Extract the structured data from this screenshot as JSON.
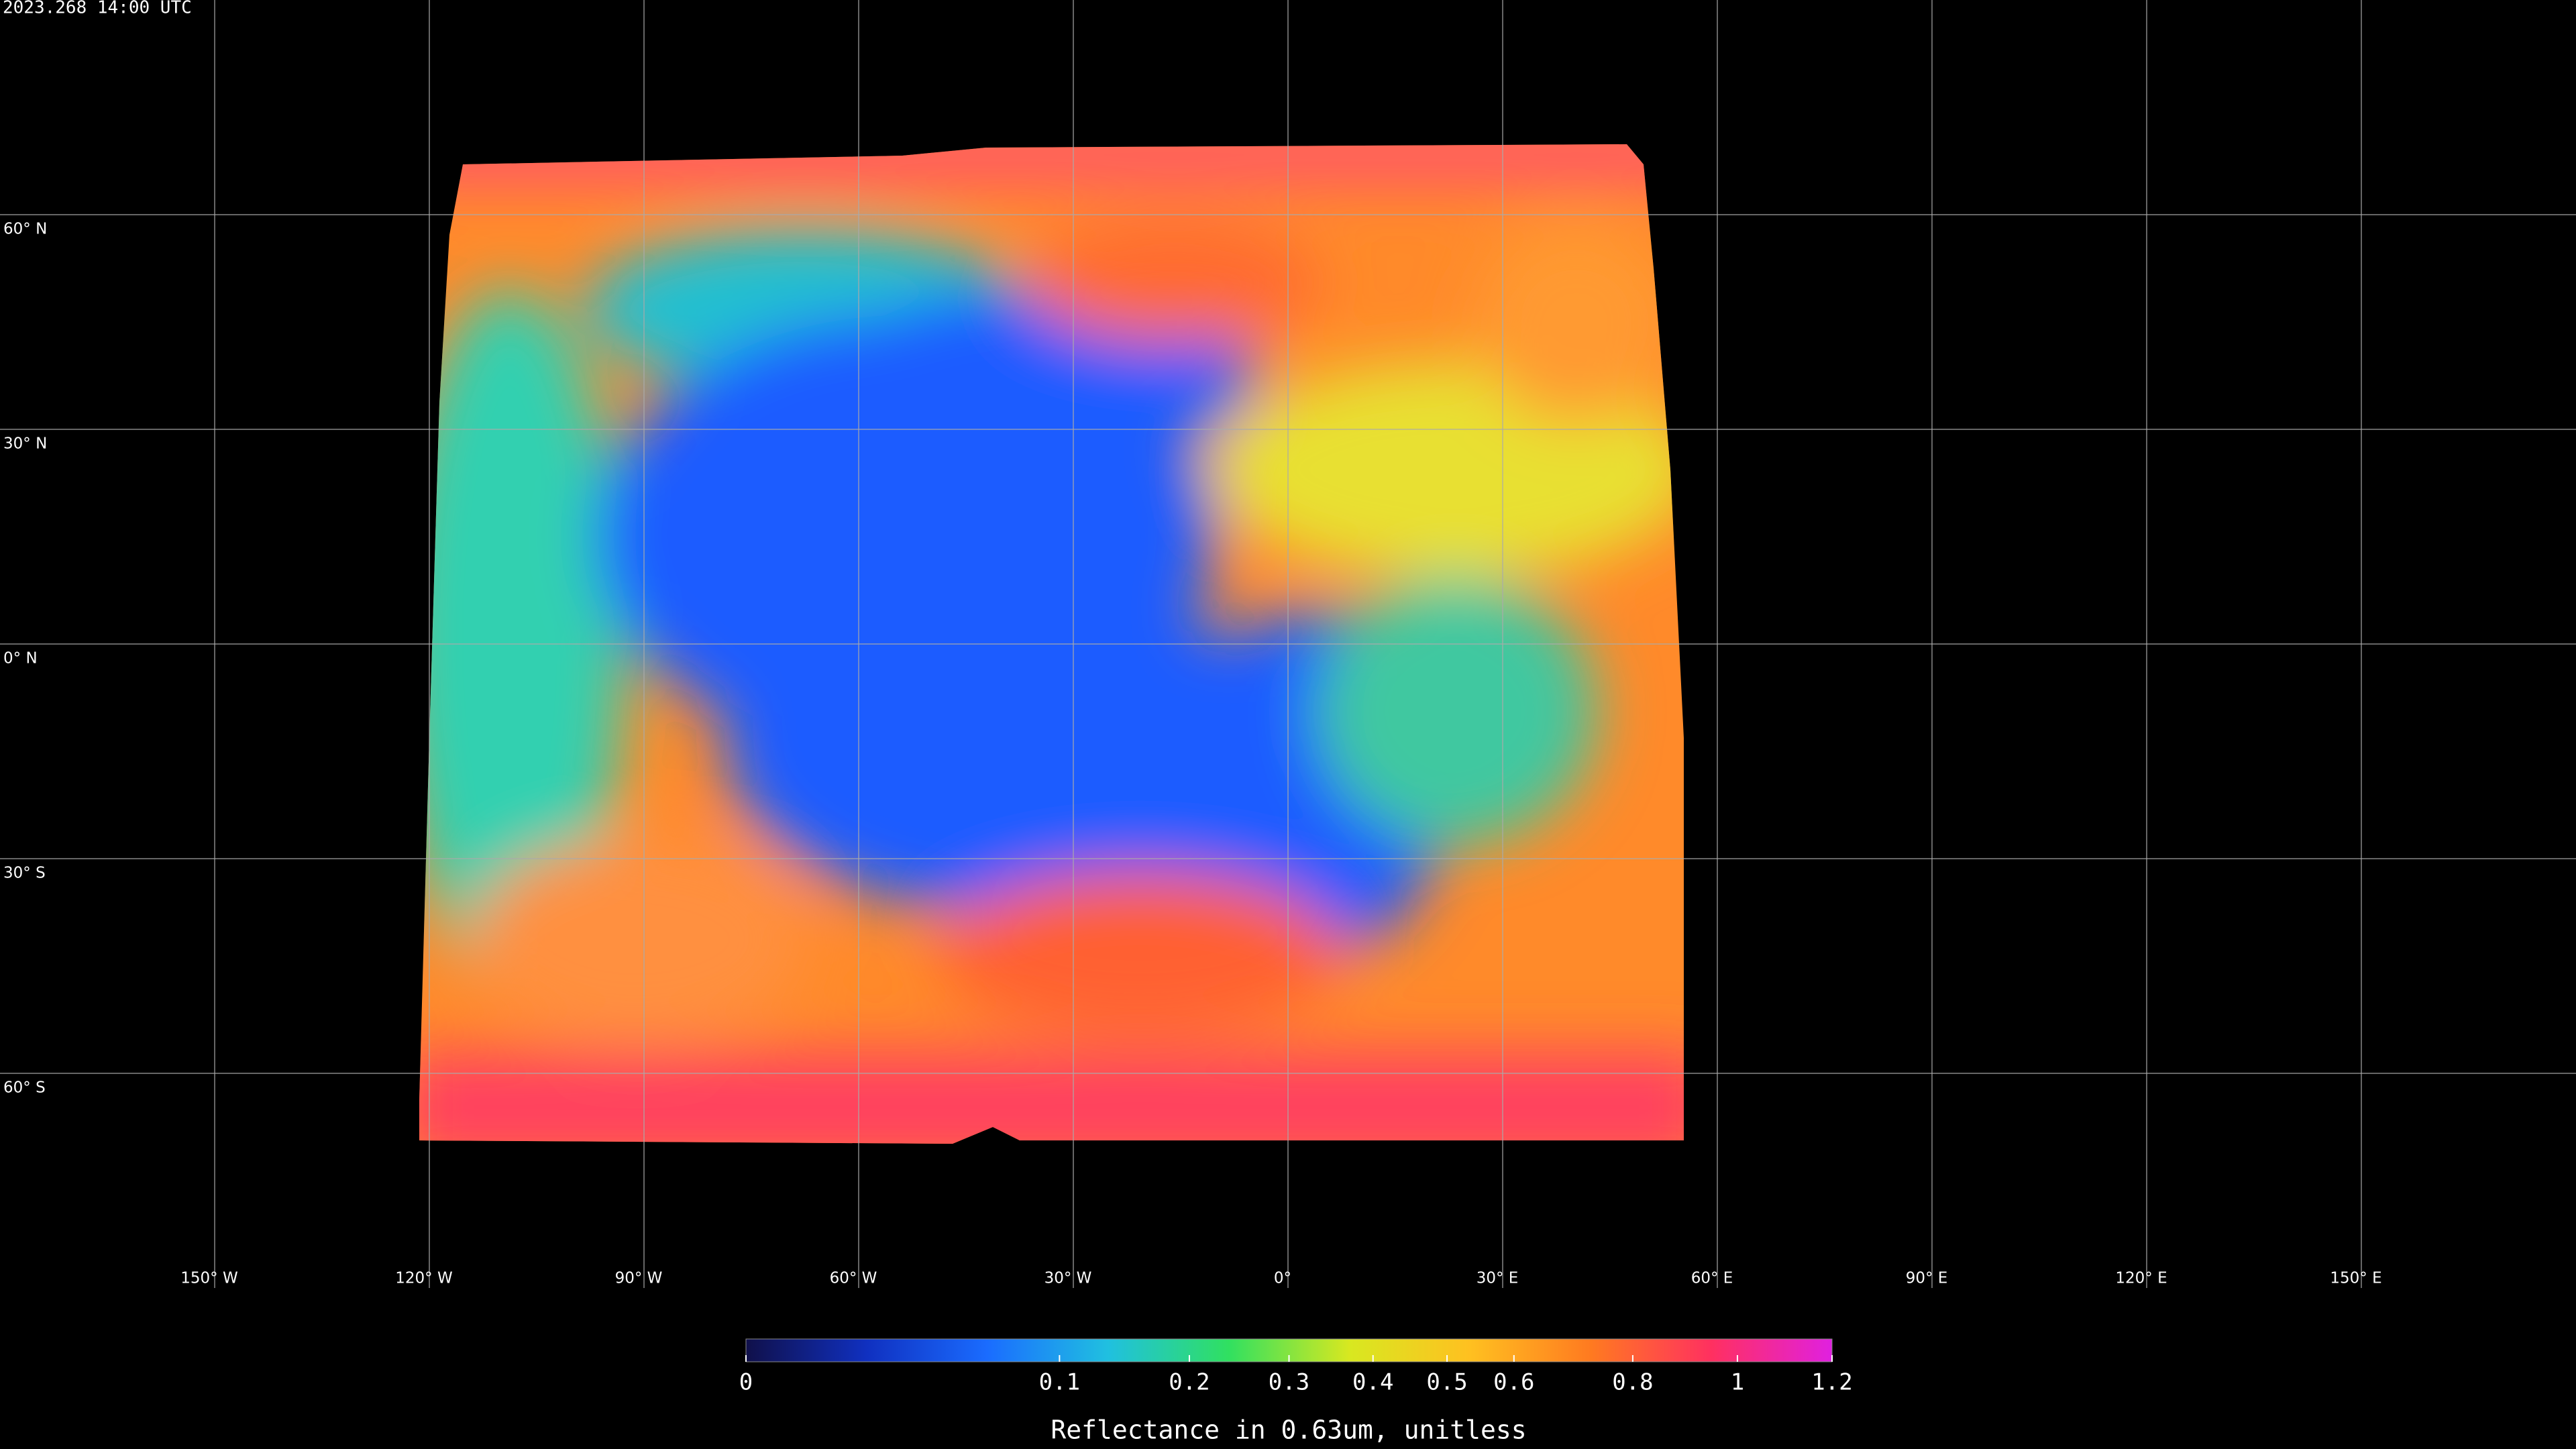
{
  "timestamp": "2023.268 14:00 UTC",
  "map": {
    "lon_range": [
      -180,
      180
    ],
    "lat_range": [
      -90,
      90
    ],
    "lats": [
      {
        "value": 60,
        "label": "60° N"
      },
      {
        "value": 30,
        "label": "30° N"
      },
      {
        "value": 0,
        "label": "0° N"
      },
      {
        "value": -30,
        "label": "30° S"
      },
      {
        "value": -60,
        "label": "60° S"
      }
    ],
    "lons": [
      {
        "value": -150,
        "label": "150° W"
      },
      {
        "value": -120,
        "label": "120° W"
      },
      {
        "value": -90,
        "label": "90° W"
      },
      {
        "value": -60,
        "label": "60° W"
      },
      {
        "value": -30,
        "label": "30° W"
      },
      {
        "value": 0,
        "label": "0°"
      },
      {
        "value": 30,
        "label": "30° E"
      },
      {
        "value": 60,
        "label": "60° E"
      },
      {
        "value": 90,
        "label": "90° E"
      },
      {
        "value": 120,
        "label": "120° E"
      },
      {
        "value": 150,
        "label": "150° E"
      }
    ]
  },
  "colorbar": {
    "label": "Reflectance in 0.63um, unitless",
    "range": [
      0,
      1.2
    ],
    "scale": "sqrt",
    "ticks": [
      0,
      0.1,
      0.2,
      0.3,
      0.4,
      0.5,
      0.6,
      0.8,
      1,
      1.2
    ],
    "colormap": [
      "#10104a",
      "#1030c0",
      "#1a6cff",
      "#20c0e0",
      "#30e060",
      "#d8e820",
      "#ffc020",
      "#ff7a20",
      "#ff3060",
      "#e020e0"
    ]
  }
}
